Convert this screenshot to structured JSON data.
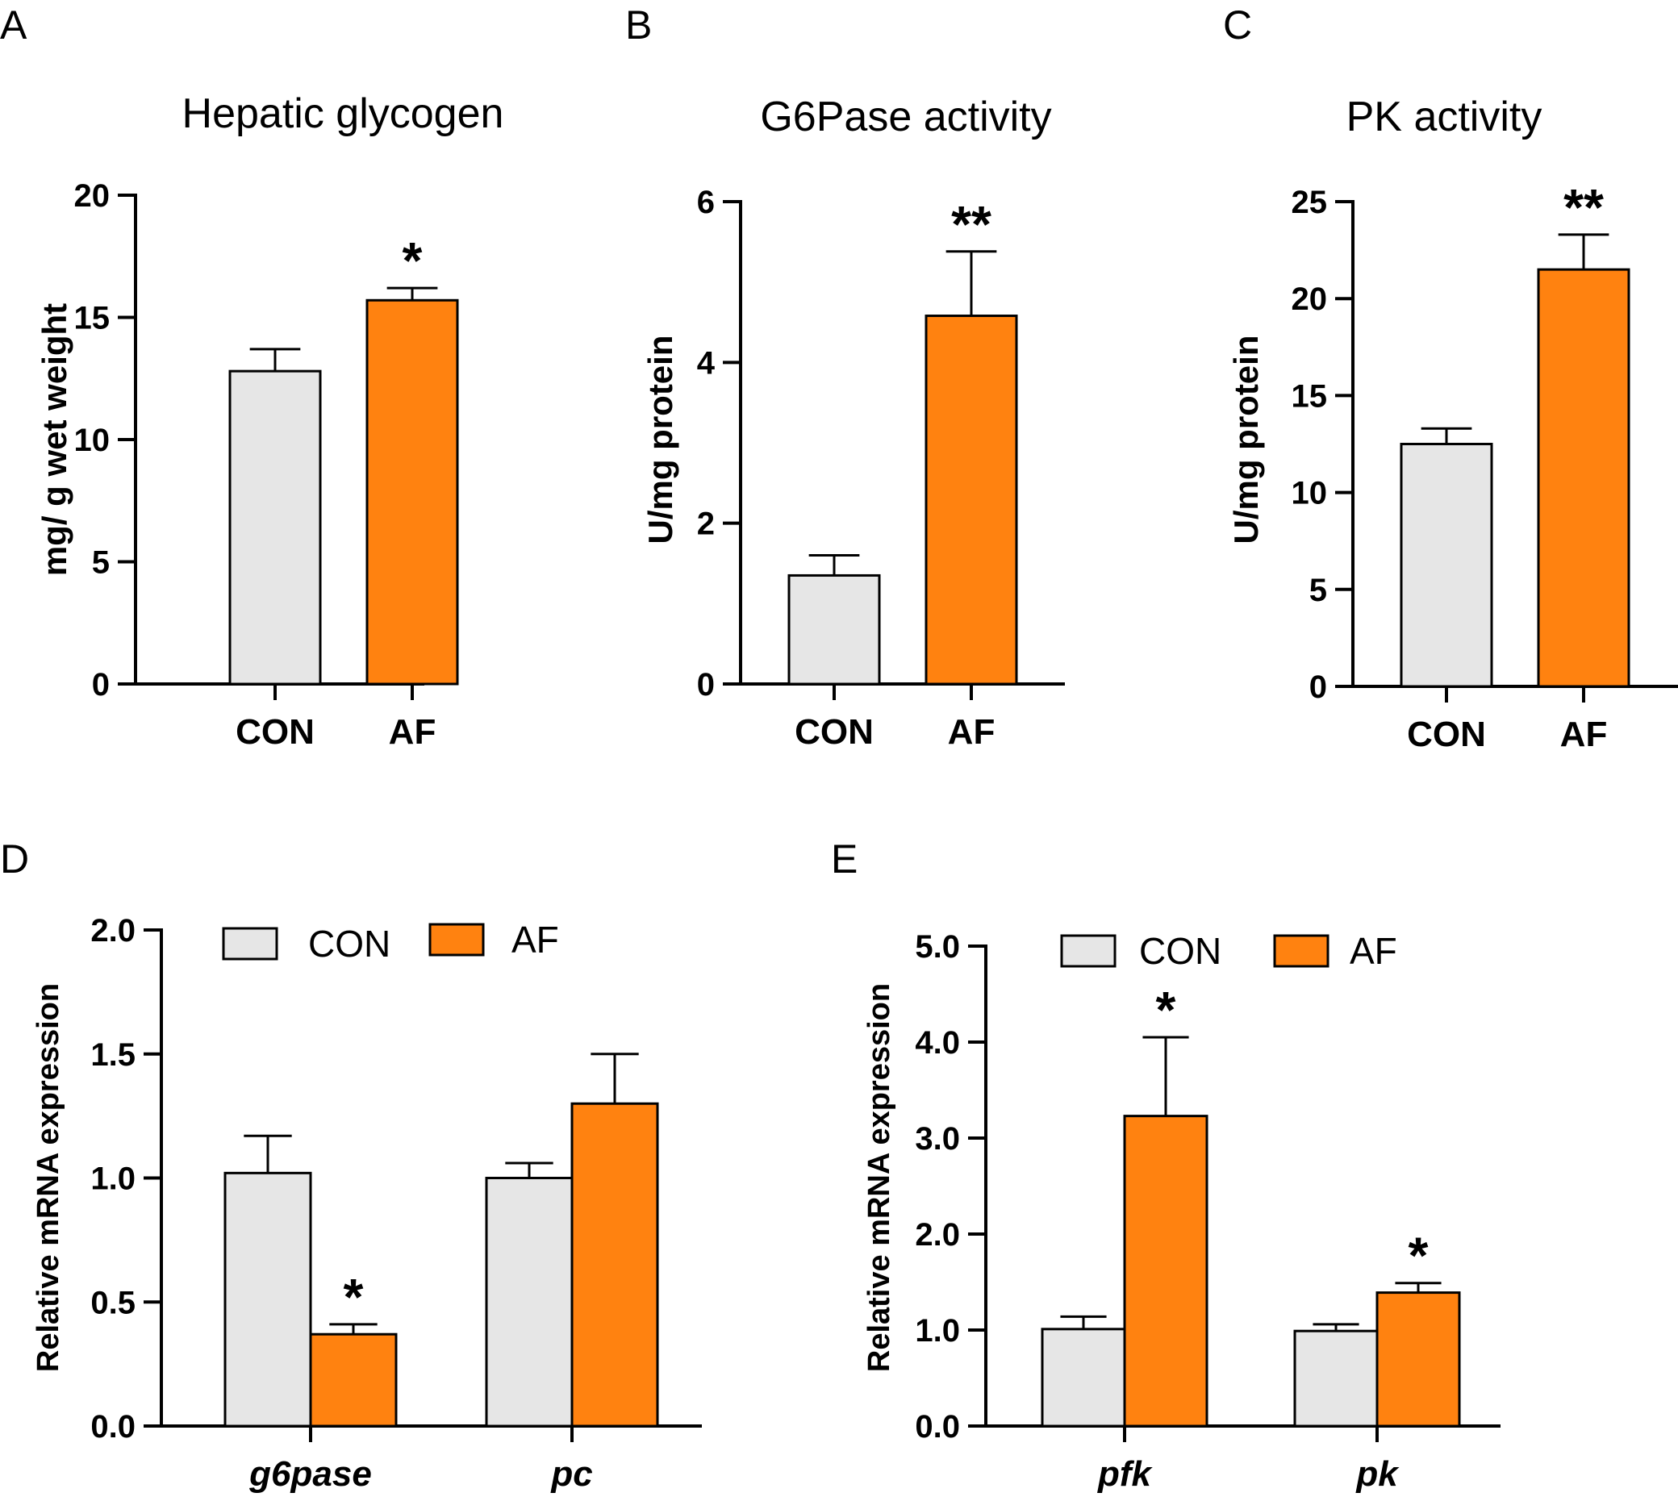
{
  "colors": {
    "con": "#e6e6e6",
    "af": "#ff8210",
    "axis": "#000000"
  },
  "legend": {
    "con": "CON",
    "af": "AF"
  },
  "chart_data": [
    {
      "id": "A",
      "type": "bar",
      "letter": "A",
      "title": "Hepatic glycogen",
      "ylabel": "mg/ g wet weight",
      "ylim": [
        0,
        20
      ],
      "yticks": [
        "0",
        "5",
        "10",
        "15",
        "20"
      ],
      "categories": [
        "CON",
        "AF"
      ],
      "values": [
        12.8,
        15.7
      ],
      "errors": [
        0.9,
        0.5
      ],
      "significance": [
        "",
        "*"
      ]
    },
    {
      "id": "B",
      "type": "bar",
      "letter": "B",
      "title": "G6Pase activity",
      "ylabel": "U/mg protein",
      "ylim": [
        0,
        6
      ],
      "yticks": [
        "0",
        "2",
        "4",
        "6"
      ],
      "categories": [
        "CON",
        "AF"
      ],
      "values": [
        1.35,
        4.58
      ],
      "errors": [
        0.25,
        0.8
      ],
      "significance": [
        "",
        "**"
      ]
    },
    {
      "id": "C",
      "type": "bar",
      "letter": "C",
      "title": "PK activity",
      "ylabel": "U/mg protein",
      "ylim": [
        0,
        25
      ],
      "yticks": [
        "0",
        "5",
        "10",
        "15",
        "20",
        "25"
      ],
      "categories": [
        "CON",
        "AF"
      ],
      "values": [
        12.5,
        21.5
      ],
      "errors": [
        0.8,
        1.8
      ],
      "significance": [
        "",
        "**"
      ]
    },
    {
      "id": "D",
      "type": "bar",
      "letter": "D",
      "ylabel": "Relative  mRNA expression",
      "ylim": [
        0,
        2.0
      ],
      "yticks": [
        "0.0",
        "0.5",
        "1.0",
        "1.5",
        "2.0"
      ],
      "categories": [
        "g6pase",
        "pc"
      ],
      "series": [
        {
          "name": "CON",
          "values": [
            1.02,
            1.0
          ],
          "errors": [
            0.15,
            0.06
          ],
          "significance": [
            "",
            ""
          ]
        },
        {
          "name": "AF",
          "values": [
            0.37,
            1.3
          ],
          "errors": [
            0.04,
            0.2
          ],
          "significance": [
            "*",
            ""
          ]
        }
      ]
    },
    {
      "id": "E",
      "type": "bar",
      "letter": "E",
      "ylabel": "Relative  mRNA expression",
      "ylim": [
        0,
        5.0
      ],
      "yticks": [
        "0.0",
        "1.0",
        "2.0",
        "3.0",
        "4.0",
        "5.0"
      ],
      "categories": [
        "pfk",
        "pk"
      ],
      "series": [
        {
          "name": "CON",
          "values": [
            1.01,
            0.99
          ],
          "errors": [
            0.13,
            0.07
          ],
          "significance": [
            "",
            ""
          ]
        },
        {
          "name": "AF",
          "values": [
            3.23,
            1.39
          ],
          "errors": [
            0.82,
            0.1
          ],
          "significance": [
            "*",
            "*"
          ]
        }
      ]
    }
  ]
}
